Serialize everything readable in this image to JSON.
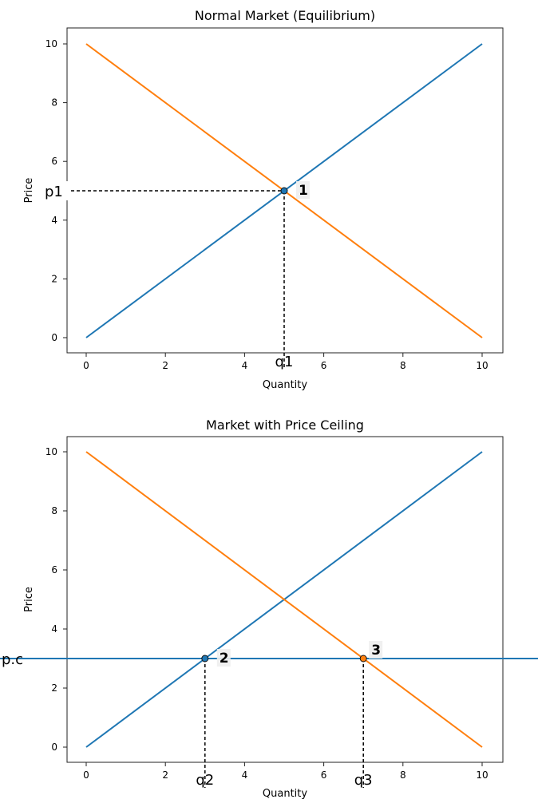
{
  "chart_data": [
    {
      "type": "line",
      "title": "Normal Market (Equilibrium)",
      "xlabel": "Quantity",
      "ylabel": "Price",
      "xlim": [
        0,
        10
      ],
      "ylim": [
        0,
        10
      ],
      "xticks": [
        0,
        2,
        4,
        6,
        8,
        10
      ],
      "yticks": [
        0,
        2,
        4,
        6,
        8,
        10
      ],
      "grid": false,
      "series": [
        {
          "color": "#1f77b4",
          "x": [
            0,
            10
          ],
          "y": [
            0,
            10
          ]
        },
        {
          "color": "#ff7f0e",
          "x": [
            0,
            10
          ],
          "y": [
            10,
            0
          ]
        }
      ],
      "points": [
        {
          "x": 5,
          "y": 5,
          "label": "1",
          "color": "#1f77b4"
        }
      ],
      "guides": [
        {
          "x": 5,
          "y": 5,
          "xlabel": "q1",
          "ylabel": "p1"
        }
      ]
    },
    {
      "type": "line",
      "title": "Market with Price Ceiling",
      "xlabel": "Quantity",
      "ylabel": "Price",
      "xlim": [
        0,
        10
      ],
      "ylim": [
        0,
        10
      ],
      "xticks": [
        0,
        2,
        4,
        6,
        8,
        10
      ],
      "yticks": [
        0,
        2,
        4,
        6,
        8,
        10
      ],
      "grid": false,
      "series": [
        {
          "color": "#1f77b4",
          "x": [
            0,
            10
          ],
          "y": [
            0,
            10
          ]
        },
        {
          "color": "#ff7f0e",
          "x": [
            0,
            10
          ],
          "y": [
            10,
            0
          ]
        }
      ],
      "hline": {
        "y": 3,
        "color": "#1f77b4",
        "label": "p.c"
      },
      "points": [
        {
          "x": 3,
          "y": 3,
          "label": "2",
          "color": "#1f77b4"
        },
        {
          "x": 7,
          "y": 3,
          "label": "3",
          "color": "#ff7f0e"
        }
      ],
      "guides": [
        {
          "x": 3,
          "y": 3,
          "xlabel": "q2"
        },
        {
          "x": 7,
          "y": 3,
          "xlabel": "q3"
        }
      ]
    }
  ]
}
